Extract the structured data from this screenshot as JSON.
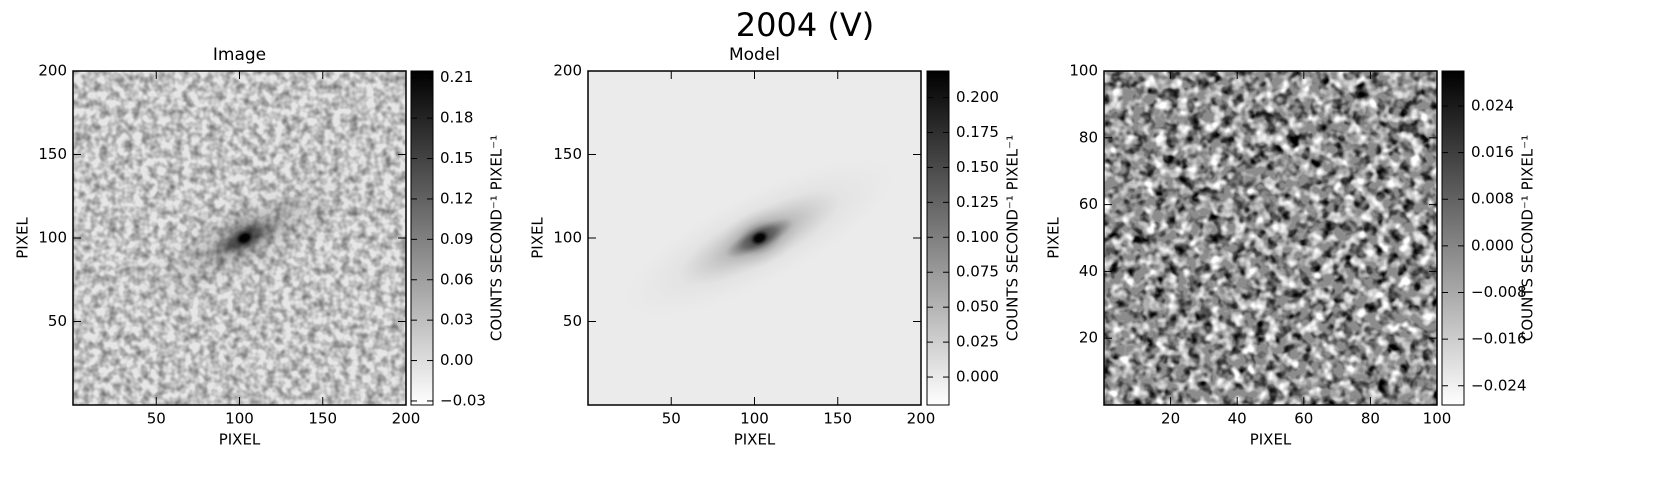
{
  "title": "2004 (V)",
  "chart_data": [
    {
      "type": "image",
      "title": "Image",
      "xlabel": "PIXEL",
      "ylabel": "PIXEL",
      "xlim": [
        0,
        200
      ],
      "ylim": [
        0,
        200
      ],
      "xticks": [
        50,
        100,
        150,
        200
      ],
      "yticks": [
        50,
        100,
        150,
        200
      ],
      "colorbar": {
        "label": "COUNTS SECOND⁻¹ PIXEL⁻¹",
        "lim": [
          -0.033,
          0.215
        ],
        "ticks": [
          {
            "value": -0.03,
            "label": "−0.03"
          },
          {
            "value": 0,
            "label": "0.00"
          },
          0.03,
          0.06,
          0.09,
          0.12,
          0.15,
          0.18,
          0.21
        ]
      }
    },
    {
      "type": "image",
      "title": "Model",
      "xlabel": "PIXEL",
      "ylabel": "PIXEL",
      "xlim": [
        0,
        200
      ],
      "ylim": [
        0,
        200
      ],
      "xticks": [
        50,
        100,
        150,
        200
      ],
      "yticks": [
        50,
        100,
        150,
        200
      ],
      "colorbar": {
        "label": "COUNTS SECOND⁻¹ PIXEL⁻¹",
        "lim": [
          -0.02,
          0.219
        ],
        "ticks": [
          {
            "value": 0,
            "label": "0.000"
          },
          0.025,
          {
            "value": 0.05,
            "label": "0.050"
          },
          0.075,
          {
            "value": 0.1,
            "label": "0.100"
          },
          0.125,
          {
            "value": 0.15,
            "label": "0.150"
          },
          0.175,
          {
            "value": 0.2,
            "label": "0.200"
          }
        ]
      }
    },
    {
      "type": "residual",
      "xlabel": "PIXEL",
      "ylabel": "PIXEL",
      "xlim": [
        0,
        100
      ],
      "ylim": [
        0,
        100
      ],
      "xticks": [
        20,
        40,
        60,
        80,
        100
      ],
      "yticks": [
        20,
        40,
        60,
        80,
        100
      ],
      "colorbar": {
        "label": "COUNTS SECOND⁻¹ PIXEL⁻¹",
        "lim": [
          -0.0273,
          0.03
        ],
        "ticks": [
          {
            "value": -0.024,
            "label": "−0.024"
          },
          {
            "value": -0.016,
            "label": "−0.016"
          },
          {
            "value": -0.008,
            "label": "−0.008"
          },
          {
            "value": 0,
            "label": "0.000"
          },
          0.008,
          0.016,
          0.024
        ]
      }
    }
  ]
}
